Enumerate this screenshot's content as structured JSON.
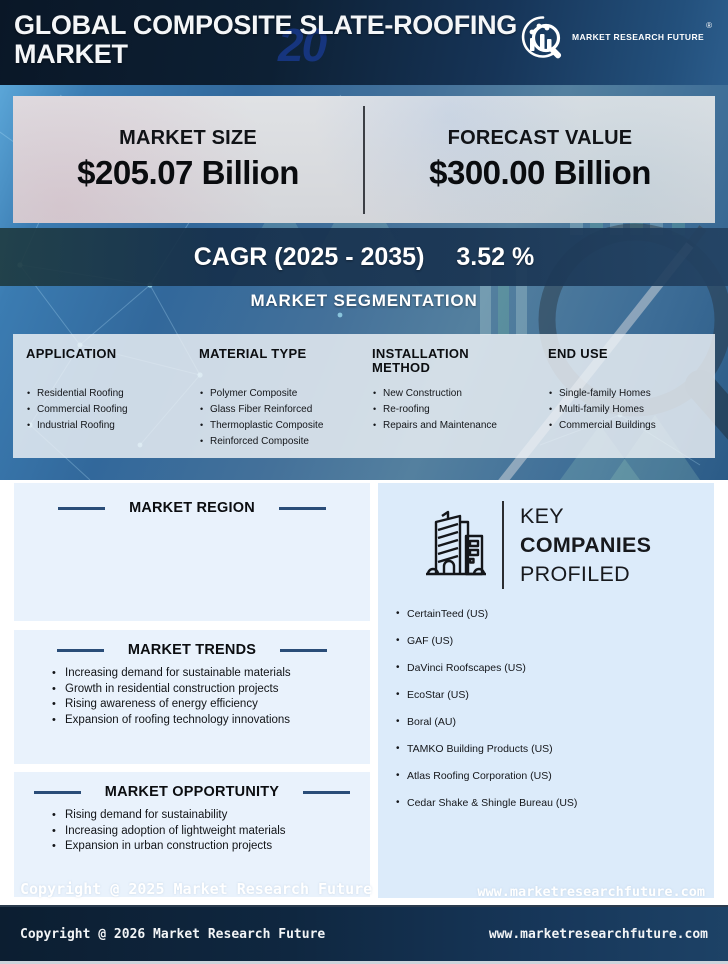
{
  "header": {
    "title_line1": "GLOBAL COMPOSITE SLATE-ROOFING",
    "title_line2": "MARKET",
    "watermark": "20",
    "brand": "MARKET RESEARCH FUTURE",
    "reg_mark": "®"
  },
  "stats": {
    "market_size_label": "MARKET SIZE",
    "market_size_value": "$205.07 Billion",
    "forecast_label": "FORECAST VALUE",
    "forecast_value": "$300.00 Billion"
  },
  "cagr": {
    "label": "CAGR (2025 - 2035)",
    "value": "3.52 %"
  },
  "segmentation": {
    "title": "MARKET SEGMENTATION",
    "columns": [
      {
        "heading": "APPLICATION",
        "items": [
          "Residential Roofing",
          "Commercial Roofing",
          "Industrial Roofing"
        ]
      },
      {
        "heading": "MATERIAL TYPE",
        "items": [
          "Polymer Composite",
          "Glass Fiber Reinforced",
          "Thermoplastic Composite",
          "Reinforced Composite"
        ]
      },
      {
        "heading": "INSTALLATION METHOD",
        "items": [
          "New Construction",
          "Re-roofing",
          "Repairs and Maintenance"
        ]
      },
      {
        "heading": "END USE",
        "items": [
          "Single-family Homes",
          "Multi-family Homes",
          "Commercial Buildings"
        ]
      }
    ]
  },
  "region": {
    "title": "MARKET REGION"
  },
  "trends": {
    "title": "MARKET TRENDS",
    "items": [
      "Increasing demand for sustainable materials",
      "Growth in residential construction projects",
      "Rising awareness of energy efficiency",
      "Expansion of roofing technology innovations"
    ]
  },
  "opportunity": {
    "title": "MARKET OPPORTUNITY",
    "items": [
      "Rising demand for sustainability",
      "Increasing adoption of lightweight materials",
      "Expansion in urban construction projects"
    ]
  },
  "companies": {
    "title_line1": "KEY",
    "title_line2": "COMPANIES",
    "title_line3": "PROFILED",
    "items": [
      "CertainTeed (US)",
      "GAF (US)",
      "DaVinci Roofscapes (US)",
      "EcoStar (US)",
      "Boral (AU)",
      "TAMKO Building Products (US)",
      "Atlas Roofing Corporation (US)",
      "Cedar Shake & Shingle Bureau (US)"
    ]
  },
  "overlay": {
    "copyright": "Copyright @ 2025 Market Research Future",
    "website": "www.marketresearchfuture.com"
  },
  "footer": {
    "copyright": "Copyright @ 2026 Market Research Future",
    "website": "www.marketresearchfuture.com"
  },
  "colors": {
    "header_navy": "#0d2034",
    "accent_dash": "#2a4d78",
    "cagr_band": "#16304c",
    "panel_light_blue": "#e9f2fc",
    "companies_panel_blue": "#dcebfa",
    "stats_panel_gray": "#d9dbde"
  }
}
